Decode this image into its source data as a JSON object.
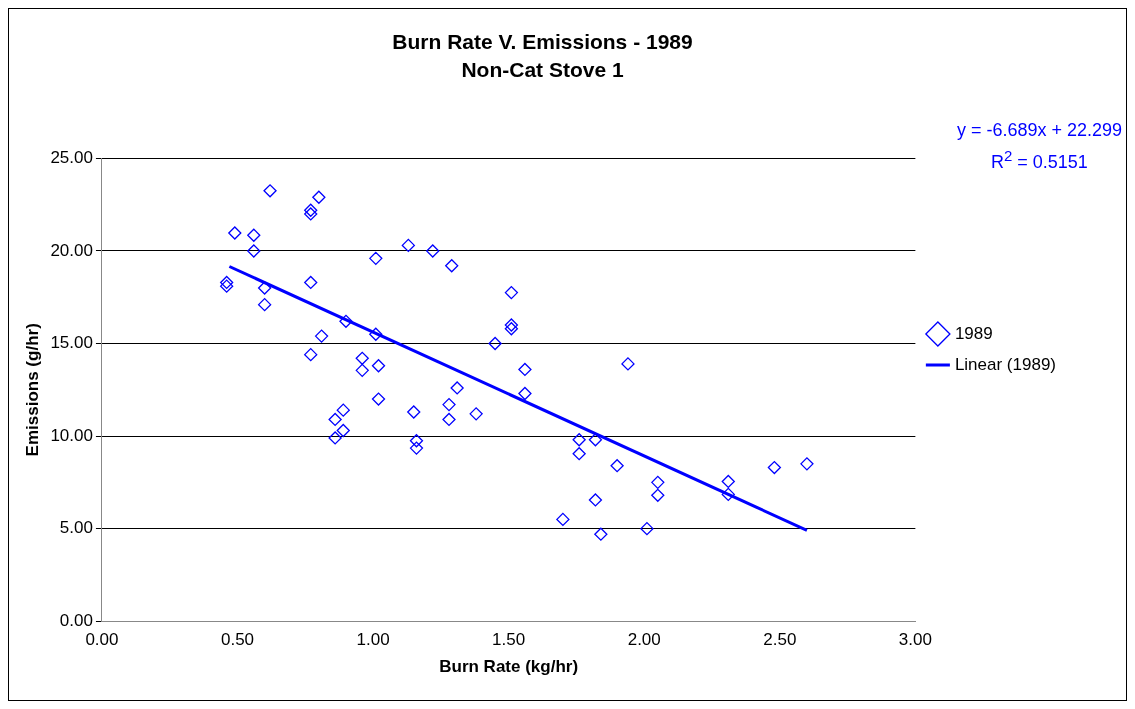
{
  "chart_data": {
    "type": "scatter",
    "title": "Burn Rate V. Emissions - 1989",
    "subtitle": "Non-Cat Stove 1",
    "xlabel": "Burn Rate (kg/hr)",
    "ylabel": "Emissions (g/hr)",
    "series": [
      {
        "name": "1989",
        "color": "#0000ff",
        "marker": "diamond",
        "x": [
          0.62,
          0.8,
          0.77,
          0.77,
          0.49,
          0.56,
          0.56,
          1.01,
          1.13,
          1.22,
          1.29,
          0.46,
          0.46,
          0.6,
          0.6,
          0.77,
          1.51,
          1.51,
          1.51,
          0.9,
          1.01,
          0.81,
          1.45,
          0.77,
          0.96,
          0.96,
          1.02,
          1.56,
          1.56,
          1.31,
          1.02,
          1.15,
          1.28,
          1.28,
          1.38,
          0.89,
          0.86,
          0.89,
          0.86,
          1.16,
          1.16,
          1.94,
          1.76,
          1.82,
          1.76,
          1.9,
          2.05,
          2.05,
          2.31,
          2.31,
          1.82,
          1.7,
          1.84,
          2.01,
          2.48,
          2.6
        ],
        "values": [
          23.25,
          22.9,
          22.0,
          22.2,
          20.97,
          20.85,
          20.0,
          19.6,
          20.3,
          20.0,
          19.2,
          18.3,
          18.1,
          18.0,
          17.1,
          18.3,
          17.75,
          16.0,
          15.8,
          16.2,
          15.5,
          15.4,
          15.0,
          14.4,
          14.2,
          13.55,
          13.8,
          13.6,
          12.3,
          12.6,
          12.0,
          11.3,
          11.7,
          10.9,
          11.2,
          11.4,
          10.9,
          10.3,
          9.9,
          9.75,
          9.35,
          13.9,
          9.8,
          9.8,
          9.05,
          8.4,
          7.5,
          6.8,
          7.55,
          6.85,
          6.55,
          5.5,
          4.7,
          5.0,
          8.3,
          8.5
        ]
      },
      {
        "name": "Linear (1989)",
        "type": "line",
        "color": "#0000ff",
        "x": [
          0.47,
          2.6
        ],
        "values": [
          19.16,
          4.91
        ]
      }
    ],
    "xlim": [
      0,
      3
    ],
    "xticks": [
      {
        "value": 0,
        "label": "0.00"
      },
      {
        "value": 0.5,
        "label": "0.50"
      },
      {
        "value": 1,
        "label": "1.00"
      },
      {
        "value": 1.5,
        "label": "1.50"
      },
      {
        "value": 2,
        "label": "2.00"
      },
      {
        "value": 2.5,
        "label": "2.50"
      },
      {
        "value": 3,
        "label": "3.00"
      }
    ],
    "ylim": [
      0,
      25
    ],
    "yticks": [
      {
        "value": 0,
        "label": "0.00"
      },
      {
        "value": 5,
        "label": "5.00"
      },
      {
        "value": 10,
        "label": "10.00"
      },
      {
        "value": 15,
        "label": "15.00"
      },
      {
        "value": 20,
        "label": "20.00"
      },
      {
        "value": 25,
        "label": "25.00"
      }
    ],
    "grid": "y",
    "legend": "right",
    "line_style": "solid",
    "annotations": [
      "y = -6.689x + 22.299",
      "R$^{2}$ = 0.5151"
    ]
  }
}
